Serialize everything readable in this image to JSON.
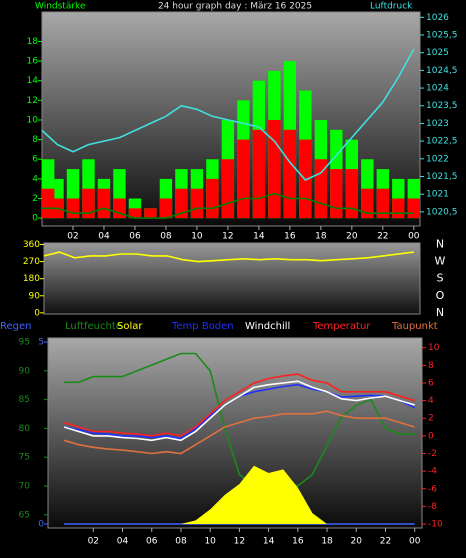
{
  "chart_data": [
    {
      "type": "bar",
      "title": "24 hour graph day : März 16 2025",
      "y_label": "Windstärke",
      "y2_label": "Luftdruck",
      "x": [
        0,
        1,
        2,
        3,
        4,
        5,
        6,
        7,
        8,
        9,
        10,
        11,
        12,
        13,
        14,
        15,
        16,
        17,
        18,
        19,
        20,
        21,
        22,
        23,
        24
      ],
      "xlim": [
        0,
        24.4
      ],
      "xticks": [
        {
          "value": 2,
          "label": "02"
        },
        {
          "value": 4,
          "label": "04"
        },
        {
          "value": 6,
          "label": "06"
        },
        {
          "value": 8,
          "label": "08"
        },
        10,
        12,
        14,
        16,
        18,
        20,
        22,
        {
          "value": 24,
          "label": "00"
        }
      ],
      "ylim": [
        -0.8,
        21
      ],
      "yticks": [
        0,
        2,
        4,
        6,
        8,
        10,
        12,
        14,
        16,
        18
      ],
      "y2lim": [
        1020.1,
        1026.15
      ],
      "y2ticks": [
        {
          "value": 1020.5,
          "label": "1020,5"
        },
        1021,
        {
          "value": 1021.5,
          "label": "1021,5"
        },
        1022,
        {
          "value": 1022.5,
          "label": "1022,5"
        },
        1023,
        {
          "value": 1023.5,
          "label": "1023,5"
        },
        1024,
        {
          "value": 1024.5,
          "label": "1024,5"
        },
        1025,
        {
          "value": 1025.5,
          "label": "1025,5"
        },
        1026
      ],
      "series": [
        {
          "type": "bar",
          "color": "#00ff00",
          "values": [
            6,
            4,
            5,
            6,
            4,
            5,
            2,
            1,
            4,
            5,
            5,
            6,
            10,
            12,
            14,
            15,
            16,
            13,
            10,
            9,
            8,
            6,
            5,
            4,
            4
          ]
        },
        {
          "type": "bar",
          "color": "#ff0000",
          "values": [
            3,
            2,
            2,
            3,
            3,
            2,
            1,
            1,
            2,
            3,
            3,
            4,
            6,
            8,
            9,
            10,
            9,
            8,
            6,
            5,
            5,
            3,
            3,
            2,
            2
          ]
        },
        {
          "type": "line",
          "color": "#008000",
          "values": [
            1,
            1,
            0.5,
            0.5,
            1,
            0.5,
            0,
            0,
            0,
            0.5,
            1,
            1,
            1.5,
            2,
            2,
            2.5,
            2,
            2,
            1.5,
            1,
            1,
            0.5,
            0.5,
            0.5,
            0.5
          ]
        },
        {
          "type": "line",
          "axis": "y2",
          "color": "#40e0e0",
          "values": [
            1022.8,
            1022.4,
            1022.2,
            1022.4,
            1022.5,
            1022.6,
            1022.8,
            1023,
            1023.2,
            1023.5,
            1023.4,
            1023.2,
            1023.1,
            1023,
            1022.9,
            1022.5,
            1021.9,
            1021.4,
            1021.6,
            1022.1,
            1022.6,
            1023.1,
            1023.6,
            1024.3,
            1025.1
          ]
        }
      ]
    },
    {
      "type": "line",
      "x": [
        0,
        1,
        2,
        3,
        4,
        5,
        6,
        7,
        8,
        9,
        10,
        11,
        12,
        13,
        14,
        15,
        16,
        17,
        18,
        19,
        20,
        21,
        22,
        23,
        24
      ],
      "xlim": [
        0,
        24.4
      ],
      "ylim": [
        -6,
        368
      ],
      "yticks": [
        0,
        90,
        180,
        270,
        360
      ],
      "side_labels": [
        "N",
        "W",
        "S",
        "O",
        "N"
      ],
      "series": [
        {
          "type": "line",
          "color": "#ffff00",
          "values": [
            300,
            320,
            290,
            300,
            300,
            310,
            310,
            300,
            300,
            280,
            270,
            275,
            280,
            285,
            280,
            285,
            280,
            280,
            275,
            280,
            285,
            290,
            300,
            310,
            320
          ]
        }
      ]
    },
    {
      "type": "line",
      "x": [
        0,
        1,
        2,
        3,
        4,
        5,
        6,
        7,
        8,
        9,
        10,
        11,
        12,
        13,
        14,
        15,
        16,
        17,
        18,
        19,
        20,
        21,
        22,
        23,
        24
      ],
      "xlim": [
        -1.1,
        24.5
      ],
      "xticks": [
        {
          "value": 2,
          "label": "02"
        },
        {
          "value": 4,
          "label": "04"
        },
        {
          "value": 6,
          "label": "06"
        },
        {
          "value": 8,
          "label": "08"
        },
        10,
        12,
        14,
        16,
        18,
        20,
        22,
        {
          "value": 24,
          "label": "00"
        }
      ],
      "ylim": [
        62.7,
        95.7
      ],
      "yticks": [
        65,
        70,
        75,
        80,
        85,
        90,
        95
      ],
      "y2lim": [
        -10.45,
        11.1
      ],
      "y2ticks": [
        -10,
        -8,
        -6,
        -4,
        -2,
        0,
        2,
        4,
        6,
        8,
        10
      ],
      "y3lim": [
        -0.11,
        5.11
      ],
      "y3ticks": [
        0,
        5
      ],
      "series": [
        {
          "name": "Regen",
          "type": "line",
          "axis": "y3",
          "color": "#4060ff",
          "values": [
            0,
            0,
            0,
            0,
            0,
            0,
            0,
            0,
            0,
            0,
            0,
            0,
            0,
            0,
            0,
            0,
            0,
            0,
            0,
            0,
            0,
            0,
            0,
            0,
            0
          ]
        },
        {
          "name": "Luftfeuchte",
          "type": "line",
          "color": "#1a8a1a",
          "values": [
            88,
            88,
            89,
            89,
            89,
            90,
            91,
            92,
            93,
            93,
            90,
            80,
            72,
            70,
            72,
            71,
            70,
            72,
            77,
            82,
            84,
            85,
            80,
            79,
            79
          ]
        },
        {
          "name": "Solar",
          "type": "area",
          "axis": "y3",
          "color": "#ffff00",
          "values": [
            0,
            0,
            0,
            0,
            0,
            0,
            0,
            0,
            0,
            0.1,
            0.4,
            0.8,
            1.1,
            1.6,
            1.4,
            1.5,
            1,
            0.3,
            0,
            0,
            0,
            0,
            0,
            0,
            0
          ]
        },
        {
          "name": "Temp Boden",
          "type": "line",
          "axis": "y2",
          "color": "#2030ff",
          "values": [
            1,
            0.7,
            0.3,
            0.2,
            0,
            0,
            -0.2,
            0,
            -0.3,
            0.8,
            2.3,
            3.5,
            4.5,
            5,
            5.3,
            5.6,
            5.8,
            5.3,
            5,
            4.4,
            4.5,
            4.6,
            4.5,
            4,
            3.2
          ]
        },
        {
          "name": "Windchill",
          "type": "line",
          "axis": "y2",
          "color": "#ffffff",
          "values": [
            1,
            0.5,
            0,
            0,
            -0.2,
            -0.3,
            -0.5,
            -0.2,
            -0.5,
            0.5,
            2,
            3.5,
            4.5,
            5.5,
            5.8,
            6,
            6.2,
            5.5,
            5,
            4.2,
            4,
            4.3,
            4.5,
            4,
            3.5
          ]
        },
        {
          "name": "Temperatur",
          "type": "line",
          "axis": "y2",
          "color": "#ff2020",
          "values": [
            1.5,
            1,
            0.5,
            0.5,
            0.3,
            0.2,
            0,
            0.3,
            0,
            1,
            2.5,
            4,
            5,
            6,
            6.5,
            6.8,
            7,
            6.3,
            6,
            5,
            5,
            5,
            5,
            4.5,
            4
          ]
        },
        {
          "name": "Taupunkt",
          "type": "line",
          "axis": "y2",
          "color": "#e07040",
          "values": [
            -0.5,
            -1,
            -1.3,
            -1.5,
            -1.6,
            -1.8,
            -2,
            -1.8,
            -2,
            -1,
            0,
            1,
            1.5,
            2,
            2.2,
            2.5,
            2.5,
            2.5,
            2.8,
            2.3,
            2,
            2,
            2,
            1.5,
            1
          ]
        }
      ]
    }
  ]
}
